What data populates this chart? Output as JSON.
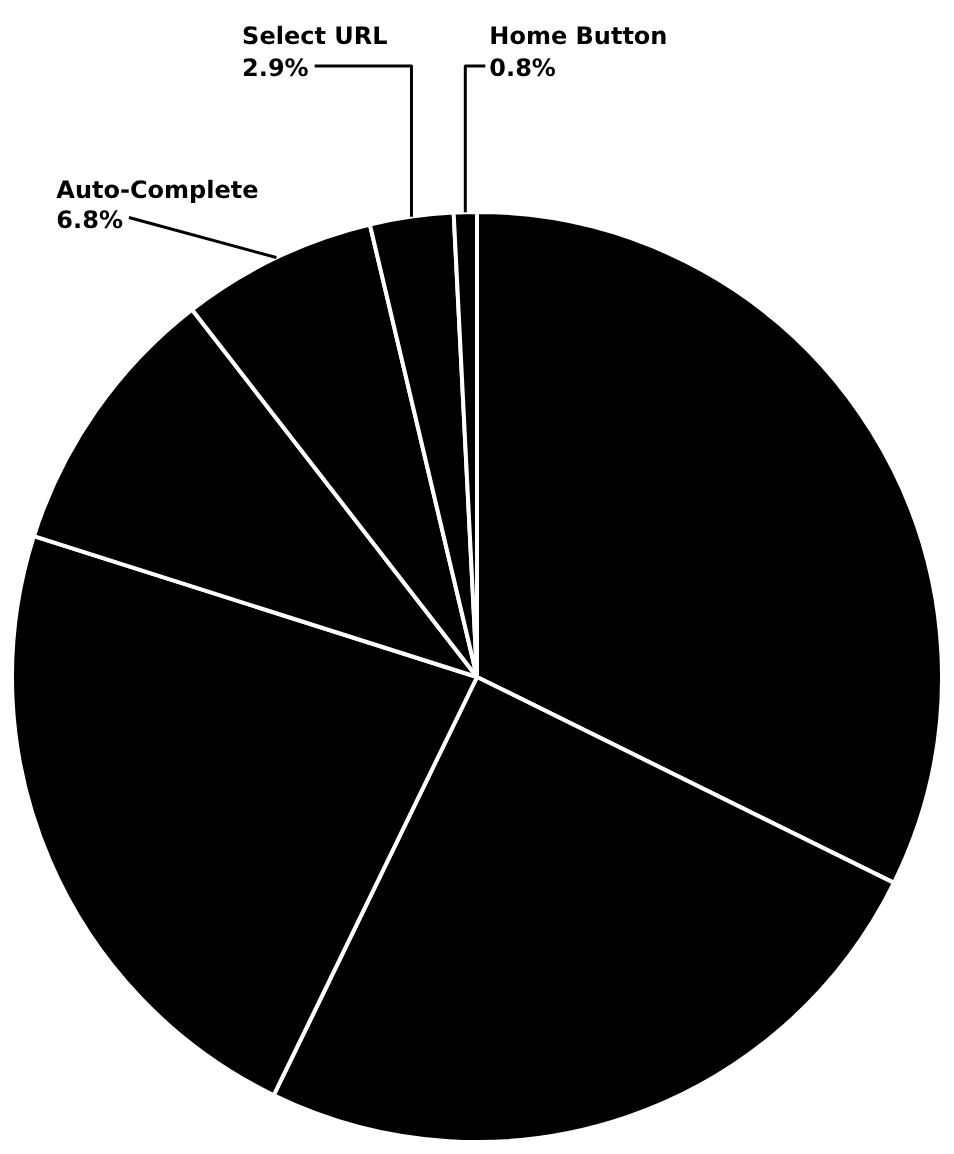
{
  "chart_data": {
    "type": "pie",
    "categories": [
      null,
      null,
      null,
      null,
      "Auto-Complete",
      "Select URL",
      "Home Button"
    ],
    "values": [
      32.3,
      24.9,
      22.7,
      9.6,
      6.8,
      2.9,
      0.8
    ],
    "colors": [
      "#000000",
      "#000000",
      "#000000",
      "#000000",
      "#000000",
      "#000000",
      "#000000"
    ],
    "value_labels": [
      null,
      null,
      null,
      null,
      "6.8%",
      "2.9%",
      "0.8%"
    ],
    "legend": false
  }
}
